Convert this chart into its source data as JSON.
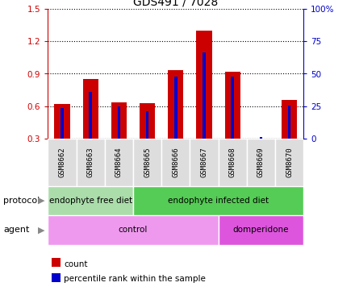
{
  "title": "GDS491 / 7028",
  "samples": [
    "GSM8662",
    "GSM8663",
    "GSM8664",
    "GSM8665",
    "GSM8666",
    "GSM8667",
    "GSM8668",
    "GSM8669",
    "GSM8670"
  ],
  "red_values": [
    0.62,
    0.85,
    0.635,
    0.63,
    0.93,
    1.3,
    0.92,
    0.0,
    0.655
  ],
  "blue_values": [
    0.585,
    0.735,
    0.595,
    0.555,
    0.875,
    1.1,
    0.875,
    0.315,
    0.605
  ],
  "ylim_min": 0.3,
  "ylim_max": 1.5,
  "yticks_left": [
    0.3,
    0.6,
    0.9,
    1.2,
    1.5
  ],
  "yticks_right": [
    0,
    25,
    50,
    75,
    100
  ],
  "red_color": "#cc0000",
  "blue_color": "#0000cc",
  "bar_width": 0.55,
  "blue_bar_width": 0.1,
  "protocol_groups": [
    {
      "label": "endophyte free diet",
      "start": 0,
      "end": 3,
      "color": "#aaddaa"
    },
    {
      "label": "endophyte infected diet",
      "start": 3,
      "end": 9,
      "color": "#55cc55"
    }
  ],
  "agent_groups": [
    {
      "label": "control",
      "start": 0,
      "end": 6,
      "color": "#ee99ee"
    },
    {
      "label": "domperidone",
      "start": 6,
      "end": 9,
      "color": "#dd55dd"
    }
  ],
  "protocol_label": "protocol",
  "agent_label": "agent",
  "legend_count": "count",
  "legend_percentile": "percentile rank within the sample",
  "title_fontsize": 10,
  "tick_fontsize": 7.5,
  "sample_fontsize": 6.5,
  "row_fontsize": 7.5,
  "legend_fontsize": 7.5
}
